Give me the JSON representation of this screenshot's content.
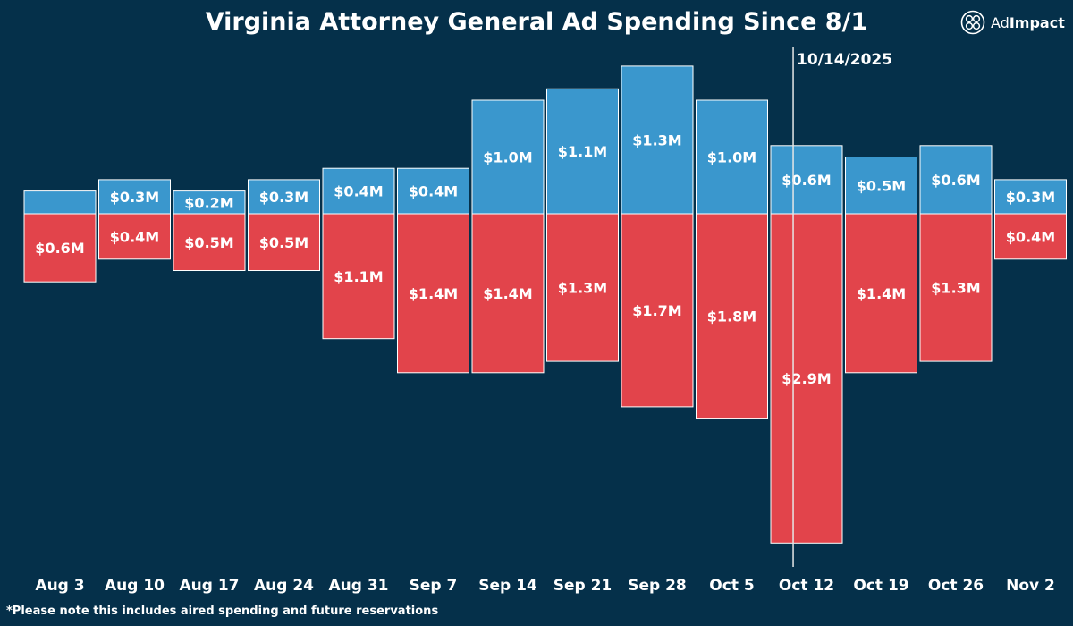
{
  "chart_data": {
    "type": "bar",
    "title": "Virginia Attorney General Ad Spending Since 8/1",
    "categories": [
      "Aug 3",
      "Aug 10",
      "Aug 17",
      "Aug 24",
      "Aug 31",
      "Sep 7",
      "Sep 14",
      "Sep 21",
      "Sep 28",
      "Oct 5",
      "Oct 12",
      "Oct 19",
      "Oct 26",
      "Nov 2"
    ],
    "series": [
      {
        "values": [
          0.2,
          0.3,
          0.2,
          0.3,
          0.4,
          0.4,
          1.0,
          1.1,
          1.3,
          1.0,
          0.6,
          0.5,
          0.6,
          0.3
        ],
        "labels": [
          "",
          "$0.3M",
          "$0.2M",
          "$0.3M",
          "$0.4M",
          "$0.4M",
          "$1.0M",
          "$1.1M",
          "$1.3M",
          "$1.0M",
          "$0.6M",
          "$0.5M",
          "$0.6M",
          "$0.3M"
        ],
        "color": "#3a97cd",
        "direction": "up"
      },
      {
        "values": [
          0.6,
          0.4,
          0.5,
          0.5,
          1.1,
          1.4,
          1.4,
          1.3,
          1.7,
          1.8,
          2.9,
          1.4,
          1.3,
          0.4
        ],
        "labels": [
          "$0.6M",
          "$0.4M",
          "$0.5M",
          "$0.5M",
          "$1.1M",
          "$1.4M",
          "$1.4M",
          "$1.3M",
          "$1.7M",
          "$1.8M",
          "$2.9M",
          "$1.4M",
          "$1.3M",
          "$0.4M"
        ],
        "color": "#e2444b",
        "direction": "down"
      }
    ],
    "marker": {
      "label": "10/14/2025",
      "position": 10.3
    },
    "unit": "$M",
    "grid": false,
    "legend": "none"
  },
  "logo": {
    "ad": "Ad",
    "impact": "Impact"
  },
  "footnote": "*Please note this includes aired spending and future reservations",
  "colors": {
    "background": "#05304a",
    "blue": "#3a97cd",
    "red": "#e2444b",
    "text": "#ffffff"
  }
}
